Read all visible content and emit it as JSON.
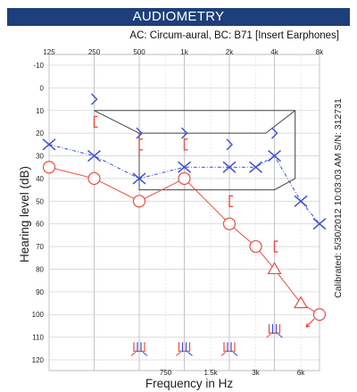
{
  "header": {
    "title": "AUDIOMETRY",
    "subtitle": "AC: Circum-aural, BC: B71 [Insert Earphones]"
  },
  "calibration_label": "Calibrated: 5/30/2012 10:03:03 AM S/N: 312731",
  "colors": {
    "title_bar": "#1d3f7a",
    "left_ear": "#e84c3d",
    "right_ear": "#3c4fd6",
    "grid": "#bdbdbd",
    "speech_banana": "#444444"
  },
  "chart_data": {
    "type": "line",
    "title": "AUDIOMETRY",
    "subtitle": "AC: Circum-aural, BC: B71 [Insert Earphones]",
    "xlabel": "Frequency in Hz",
    "ylabel": "Hearing level (dB)",
    "x_scale": "log",
    "x_top_ticks": [
      {
        "value": 125,
        "label": "125"
      },
      {
        "value": 250,
        "label": "250"
      },
      {
        "value": 500,
        "label": "500"
      },
      {
        "value": 1000,
        "label": "1k"
      },
      {
        "value": 2000,
        "label": "2k"
      },
      {
        "value": 4000,
        "label": "4k"
      },
      {
        "value": 8000,
        "label": "8k"
      }
    ],
    "x_bottom_ticks": [
      {
        "value": 750,
        "label": "750"
      },
      {
        "value": 1500,
        "label": "1.5k"
      },
      {
        "value": 3000,
        "label": "3k"
      },
      {
        "value": 6000,
        "label": "6k"
      }
    ],
    "ylim": [
      -10,
      120
    ],
    "y_ticks": [
      -10,
      0,
      10,
      20,
      30,
      40,
      50,
      60,
      70,
      80,
      90,
      100,
      110,
      120
    ],
    "y_inverted": true,
    "grid": true,
    "series": [
      {
        "color": "#e84c3d",
        "line_style": "solid",
        "points": [
          {
            "x": 125,
            "y": 35,
            "symbol": "circle"
          },
          {
            "x": 250,
            "y": 40,
            "symbol": "circle"
          },
          {
            "x": 500,
            "y": 50,
            "symbol": "circle"
          },
          {
            "x": 1000,
            "y": 40,
            "symbol": "circle"
          },
          {
            "x": 2000,
            "y": 60,
            "symbol": "circle"
          },
          {
            "x": 3000,
            "y": 70,
            "symbol": "circle"
          },
          {
            "x": 4000,
            "y": 80,
            "symbol": "triangle"
          },
          {
            "x": 6000,
            "y": 95,
            "symbol": "triangle"
          },
          {
            "x": 8000,
            "y": 100,
            "symbol": "circle"
          }
        ]
      },
      {
        "color": "#3c4fd6",
        "line_style": "dashed",
        "points": [
          {
            "x": 125,
            "y": 25,
            "symbol": "x"
          },
          {
            "x": 250,
            "y": 30,
            "symbol": "x"
          },
          {
            "x": 500,
            "y": 40,
            "symbol": "x"
          },
          {
            "x": 1000,
            "y": 35,
            "symbol": "x"
          },
          {
            "x": 2000,
            "y": 35,
            "symbol": "x"
          },
          {
            "x": 3000,
            "y": 35,
            "symbol": "x"
          },
          {
            "x": 4000,
            "y": 30,
            "symbol": "x"
          },
          {
            "x": 6000,
            "y": 50,
            "symbol": "x"
          },
          {
            "x": 8000,
            "y": 60,
            "symbol": "x"
          }
        ]
      }
    ],
    "bone_conduction": {
      "left": [
        {
          "x": 250,
          "y": 15,
          "symbol": "left-bracket"
        },
        {
          "x": 500,
          "y": 25,
          "symbol": "left-bracket"
        },
        {
          "x": 1000,
          "y": 25,
          "symbol": "left-bracket"
        },
        {
          "x": 2000,
          "y": 50,
          "symbol": "left-bracket"
        },
        {
          "x": 4000,
          "y": 70,
          "symbol": "left-bracket"
        }
      ],
      "right": [
        {
          "x": 250,
          "y": 5,
          "symbol": "right-chevron"
        },
        {
          "x": 500,
          "y": 20,
          "symbol": "right-chevron"
        },
        {
          "x": 1000,
          "y": 20,
          "symbol": "right-chevron"
        },
        {
          "x": 2000,
          "y": 25,
          "symbol": "right-chevron"
        },
        {
          "x": 4000,
          "y": 20,
          "symbol": "right-chevron"
        }
      ]
    },
    "no_response": [
      {
        "x": 500,
        "y": 115
      },
      {
        "x": 1000,
        "y": 115
      },
      {
        "x": 2000,
        "y": 115
      },
      {
        "x": 4000,
        "y": 107
      }
    ],
    "speech_banana": [
      {
        "x": 250,
        "y": 10
      },
      {
        "x": 4000,
        "y": 10
      },
      {
        "x": 5500,
        "y": 10
      },
      {
        "x": 5500,
        "y": 40
      },
      {
        "x": 4000,
        "y": 45
      },
      {
        "x": 3000,
        "y": 45
      },
      {
        "x": 2000,
        "y": 45
      },
      {
        "x": 500,
        "y": 45
      },
      {
        "x": 500,
        "y": 20
      },
      {
        "x": 250,
        "y": 10
      }
    ],
    "speech_banana_inner": [
      {
        "x": 500,
        "y": 20
      },
      {
        "x": 3500,
        "y": 20
      },
      {
        "x": 5500,
        "y": 10
      }
    ]
  }
}
